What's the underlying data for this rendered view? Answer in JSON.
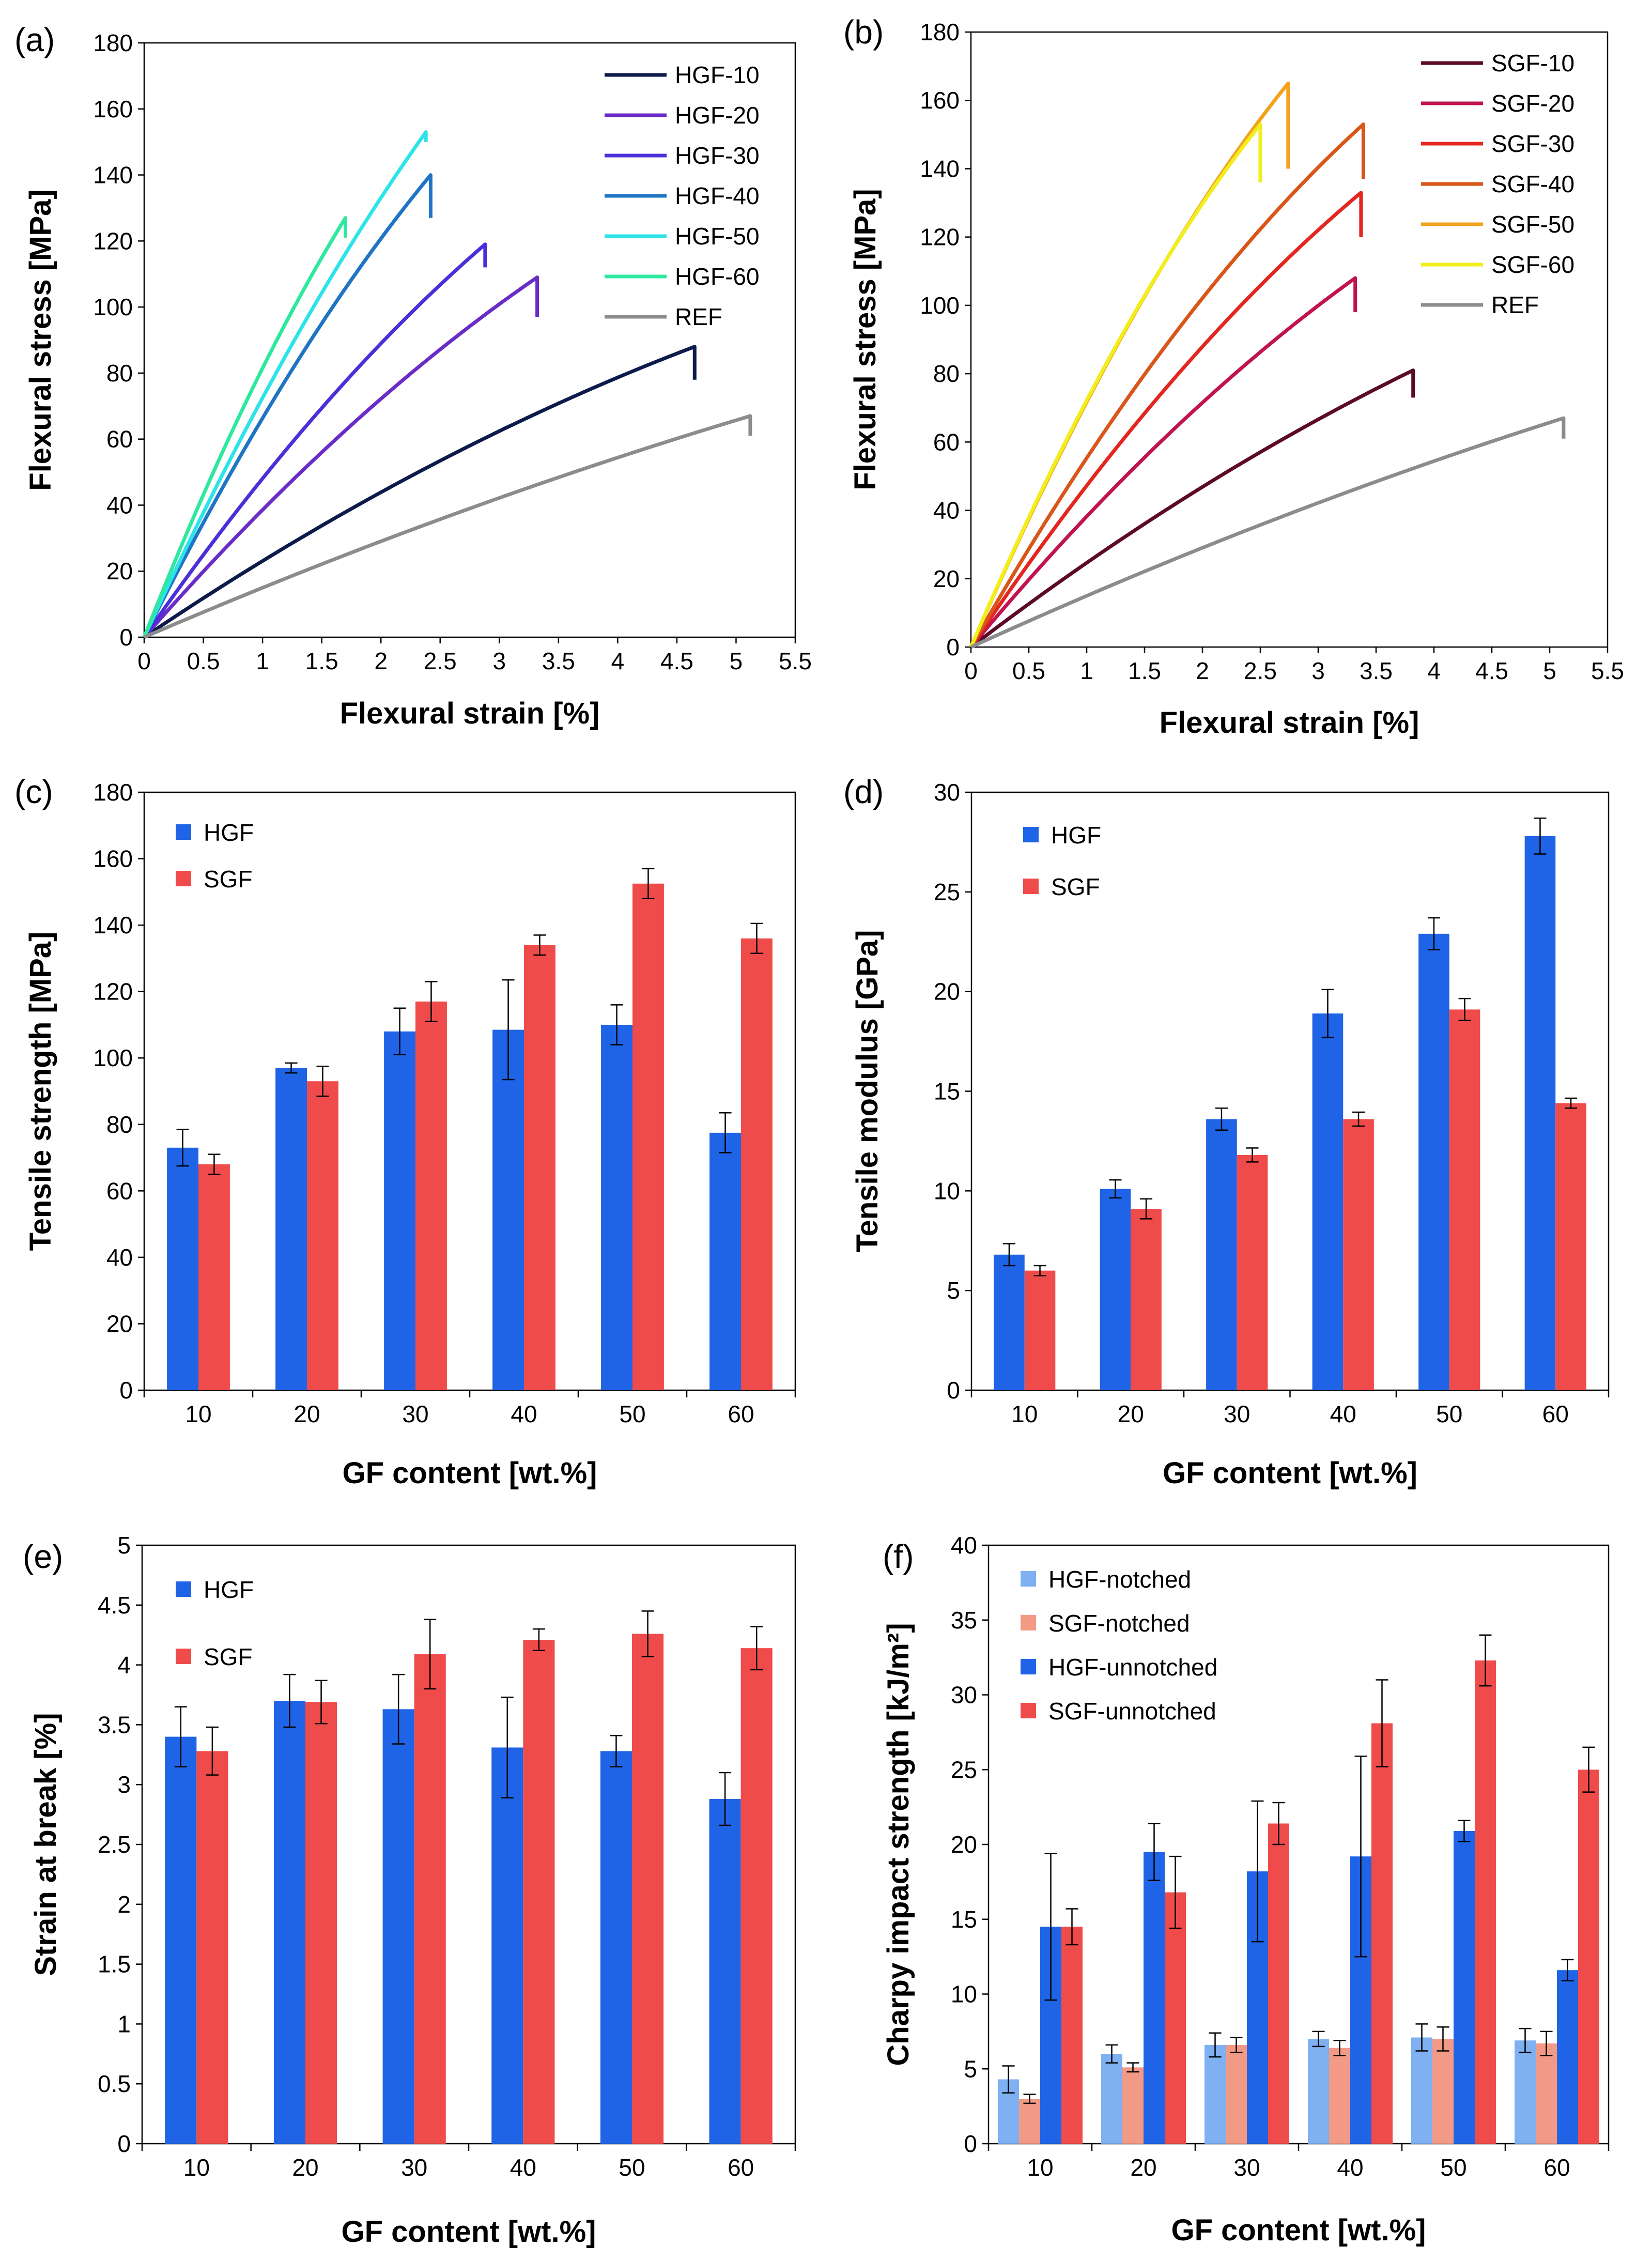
{
  "figure": {
    "panels": [
      "(a)",
      "(b)",
      "(c)",
      "(d)",
      "(e)",
      "(f)"
    ]
  },
  "chart_data": [
    {
      "id": "a",
      "panel_label": "(a)",
      "type": "line",
      "xlabel": "Flexural strain [%]",
      "ylabel": "Flexural stress [MPa]",
      "xlim": [
        0,
        5.5
      ],
      "ylim": [
        0,
        180
      ],
      "xticks": [
        "0",
        "0.5",
        "1",
        "1.5",
        "2",
        "2.5",
        "3",
        "3.5",
        "4",
        "4.5",
        "5",
        "5.5"
      ],
      "yticks": [
        "0",
        "20",
        "40",
        "60",
        "80",
        "100",
        "120",
        "140",
        "160",
        "180"
      ],
      "legend_position": "top-right",
      "series": [
        {
          "name": "HGF-10",
          "color": "#0d1b4a",
          "max_strain": 4.65,
          "max_stress": 88,
          "curvature": 0.28,
          "drop": 10
        },
        {
          "name": "HGF-20",
          "color": "#6a2cc7",
          "max_strain": 3.32,
          "max_stress": 109,
          "curvature": 0.25,
          "drop": 12
        },
        {
          "name": "HGF-30",
          "color": "#4b2fd9",
          "max_strain": 2.88,
          "max_stress": 119,
          "curvature": 0.25,
          "drop": 7
        },
        {
          "name": "HGF-40",
          "color": "#1f74c4",
          "max_strain": 2.42,
          "max_stress": 140,
          "curvature": 0.25,
          "drop": 13
        },
        {
          "name": "HGF-50",
          "color": "#2de3ea",
          "max_strain": 2.38,
          "max_stress": 153,
          "curvature": 0.22,
          "drop": 3
        },
        {
          "name": "HGF-60",
          "color": "#2ee89f",
          "max_strain": 1.7,
          "max_stress": 127,
          "curvature": 0.22,
          "drop": 6
        },
        {
          "name": "REF",
          "color": "#8c8c8c",
          "max_strain": 5.12,
          "max_stress": 67,
          "curvature": 0.18,
          "drop": 6
        }
      ]
    },
    {
      "id": "b",
      "panel_label": "(b)",
      "type": "line",
      "xlabel": "Flexural strain [%]",
      "ylabel": "Flexural stress [MPa]",
      "xlim": [
        0,
        5.5
      ],
      "ylim": [
        0,
        180
      ],
      "xticks": [
        "0",
        "0.5",
        "1",
        "1.5",
        "2",
        "2.5",
        "3",
        "3.5",
        "4",
        "4.5",
        "5",
        "5.5"
      ],
      "yticks": [
        "0",
        "20",
        "40",
        "60",
        "80",
        "100",
        "120",
        "140",
        "160",
        "180"
      ],
      "legend_position": "top-right",
      "series": [
        {
          "name": "SGF-10",
          "color": "#5c0a2a",
          "max_strain": 3.82,
          "max_stress": 81,
          "curvature": 0.22,
          "drop": 8
        },
        {
          "name": "SGF-20",
          "color": "#c0134f",
          "max_strain": 3.32,
          "max_stress": 108,
          "curvature": 0.25,
          "drop": 10
        },
        {
          "name": "SGF-30",
          "color": "#e3261f",
          "max_strain": 3.37,
          "max_stress": 133,
          "curvature": 0.28,
          "drop": 13
        },
        {
          "name": "SGF-40",
          "color": "#d9561a",
          "max_strain": 3.39,
          "max_stress": 153,
          "curvature": 0.32,
          "drop": 16
        },
        {
          "name": "SGF-50",
          "color": "#f2a31e",
          "max_strain": 2.74,
          "max_stress": 165,
          "curvature": 0.3,
          "drop": 25
        },
        {
          "name": "SGF-60",
          "color": "#f2ee1a",
          "max_strain": 2.5,
          "max_stress": 153,
          "curvature": 0.3,
          "drop": 17
        },
        {
          "name": "REF",
          "color": "#8c8c8c",
          "max_strain": 5.12,
          "max_stress": 67,
          "curvature": 0.18,
          "drop": 6
        }
      ]
    },
    {
      "id": "c",
      "panel_label": "(c)",
      "type": "bar",
      "xlabel": "GF content [wt.%]",
      "ylabel": "Tensile strength [MPa]",
      "ylim": [
        0,
        180
      ],
      "yticks": [
        "0",
        "20",
        "40",
        "60",
        "80",
        "100",
        "120",
        "140",
        "160",
        "180"
      ],
      "categories": [
        "10",
        "20",
        "30",
        "40",
        "50",
        "60"
      ],
      "legend_position": "top-left",
      "series": [
        {
          "name": "HGF",
          "color": "#1f64e6",
          "values": [
            73,
            97,
            108,
            108.5,
            110,
            77.5
          ],
          "errors": [
            5.5,
            1.5,
            7,
            15,
            6,
            6
          ]
        },
        {
          "name": "SGF",
          "color": "#f04b4b",
          "values": [
            68,
            93,
            117,
            134,
            152.5,
            136
          ],
          "errors": [
            3,
            4.5,
            6,
            3,
            4.5,
            4.5
          ]
        }
      ]
    },
    {
      "id": "d",
      "panel_label": "(d)",
      "type": "bar",
      "xlabel": "GF content [wt.%]",
      "ylabel": "Tensile modulus  [GPa]",
      "ylim": [
        0,
        30
      ],
      "yticks": [
        "0",
        "5",
        "10",
        "15",
        "20",
        "25",
        "30"
      ],
      "categories": [
        "10",
        "20",
        "30",
        "40",
        "50",
        "60"
      ],
      "legend_position": "top-left",
      "series": [
        {
          "name": "HGF",
          "color": "#1f64e6",
          "values": [
            6.8,
            10.1,
            13.6,
            18.9,
            22.9,
            27.8
          ],
          "errors": [
            0.55,
            0.45,
            0.55,
            1.2,
            0.8,
            0.9
          ]
        },
        {
          "name": "SGF",
          "color": "#f04b4b",
          "values": [
            6.0,
            9.1,
            11.8,
            13.6,
            19.1,
            14.4
          ],
          "errors": [
            0.25,
            0.5,
            0.35,
            0.35,
            0.55,
            0.25
          ]
        }
      ]
    },
    {
      "id": "e",
      "panel_label": "(e)",
      "type": "bar",
      "xlabel": "GF content [wt.%]",
      "ylabel": "Strain at break [%]",
      "ylim": [
        0,
        5
      ],
      "yticks": [
        "0",
        "0.5",
        "1",
        "1.5",
        "2",
        "2.5",
        "3",
        "3.5",
        "4",
        "4.5",
        "5"
      ],
      "categories": [
        "10",
        "20",
        "30",
        "40",
        "50",
        "60"
      ],
      "legend_position": "top-left",
      "series": [
        {
          "name": "HGF",
          "color": "#1f64e6",
          "values": [
            3.4,
            3.7,
            3.63,
            3.31,
            3.28,
            2.88
          ],
          "errors": [
            0.25,
            0.22,
            0.29,
            0.42,
            0.13,
            0.22
          ]
        },
        {
          "name": "SGF",
          "color": "#f04b4b",
          "values": [
            3.28,
            3.69,
            4.09,
            4.21,
            4.26,
            4.14
          ],
          "errors": [
            0.2,
            0.18,
            0.29,
            0.09,
            0.19,
            0.18
          ]
        }
      ]
    },
    {
      "id": "f",
      "panel_label": "(f)",
      "type": "bar",
      "xlabel": "GF content [wt.%]",
      "ylabel": "Charpy impact strength [kJ/m²]",
      "ylim": [
        0,
        40
      ],
      "yticks": [
        "0",
        "5",
        "10",
        "15",
        "20",
        "25",
        "30",
        "35",
        "40"
      ],
      "categories": [
        "10",
        "20",
        "30",
        "40",
        "50",
        "60"
      ],
      "legend_position": "top-left",
      "series": [
        {
          "name": "HGF-notched",
          "color": "#7fb0f2",
          "values": [
            4.3,
            6.0,
            6.6,
            7.0,
            7.1,
            6.9
          ],
          "errors": [
            0.9,
            0.6,
            0.8,
            0.5,
            0.9,
            0.8
          ]
        },
        {
          "name": "SGF-notched",
          "color": "#f29a86",
          "values": [
            3.0,
            5.1,
            6.6,
            6.4,
            7.0,
            6.7
          ],
          "errors": [
            0.3,
            0.3,
            0.5,
            0.5,
            0.8,
            0.8
          ]
        },
        {
          "name": "HGF-unnotched",
          "color": "#1f64e6",
          "values": [
            14.5,
            19.5,
            18.2,
            19.2,
            20.9,
            11.6
          ],
          "errors": [
            4.9,
            1.9,
            4.7,
            6.7,
            0.7,
            0.7
          ]
        },
        {
          "name": "SGF-unnotched",
          "color": "#f04b4b",
          "values": [
            14.5,
            16.8,
            21.4,
            28.1,
            32.3,
            25.0
          ],
          "errors": [
            1.2,
            2.4,
            1.4,
            2.9,
            1.7,
            1.5
          ]
        }
      ]
    }
  ]
}
